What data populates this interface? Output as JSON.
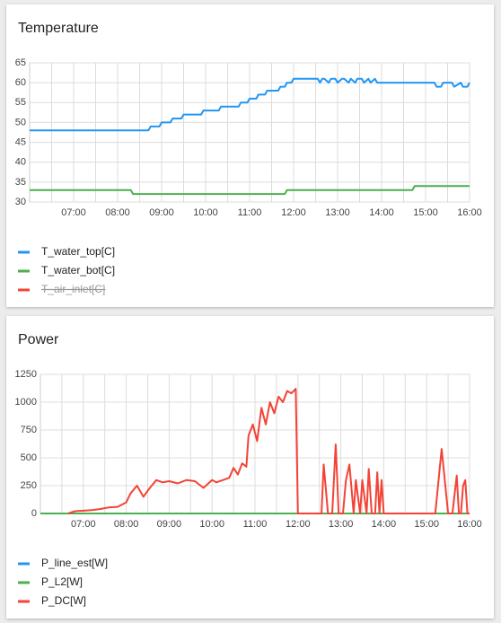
{
  "chart_data": [
    {
      "type": "line",
      "title": "Temperature",
      "xlim": [
        6,
        16
      ],
      "xticks": [
        {
          "value": 7,
          "label": "07:00"
        },
        {
          "value": 8,
          "label": "08:00"
        },
        {
          "value": 9,
          "label": "09:00"
        },
        {
          "value": 10,
          "label": "10:00"
        },
        {
          "value": 11,
          "label": "11:00"
        },
        {
          "value": 12,
          "label": "12:00"
        },
        {
          "value": 13,
          "label": "13:00"
        },
        {
          "value": 14,
          "label": "14:00"
        },
        {
          "value": 15,
          "label": "15:00"
        },
        {
          "value": 16,
          "label": "16:00"
        }
      ],
      "ylim": [
        30,
        65
      ],
      "yticks": [
        30,
        35,
        40,
        45,
        50,
        55,
        60,
        65
      ],
      "grid": true,
      "series": [
        {
          "name": "T_water_top[C]",
          "color": "#2196f3",
          "x": [
            6,
            8.7,
            8.75,
            8.95,
            9.0,
            9.2,
            9.25,
            9.45,
            9.5,
            9.9,
            9.95,
            10.3,
            10.35,
            10.75,
            10.8,
            10.95,
            11.0,
            11.15,
            11.2,
            11.35,
            11.4,
            11.65,
            11.7,
            11.8,
            11.85,
            11.95,
            12.0,
            12.55,
            12.6,
            12.65,
            12.7,
            12.8,
            12.85,
            12.95,
            13.0,
            13.1,
            13.15,
            13.25,
            13.3,
            13.4,
            13.45,
            13.55,
            13.6,
            13.7,
            13.75,
            13.85,
            13.9,
            15.2,
            15.25,
            15.35,
            15.4,
            15.6,
            15.65,
            15.8,
            15.85,
            15.95,
            16
          ],
          "values": [
            48,
            48,
            49,
            49,
            50,
            50,
            51,
            51,
            52,
            52,
            53,
            53,
            54,
            54,
            55,
            55,
            56,
            56,
            57,
            57,
            58,
            58,
            59,
            59,
            60,
            60,
            61,
            61,
            60,
            61,
            61,
            60,
            61,
            61,
            60,
            61,
            61,
            60,
            61,
            60,
            61,
            61,
            60,
            61,
            60,
            61,
            60,
            60,
            59,
            59,
            60,
            60,
            59,
            60,
            59,
            59,
            60
          ]
        },
        {
          "name": "T_water_bot[C]",
          "color": "#4caf50",
          "x": [
            6,
            8.3,
            8.35,
            11.8,
            11.85,
            14.7,
            14.75,
            16
          ],
          "values": [
            33,
            33,
            32,
            32,
            33,
            33,
            34,
            34
          ]
        },
        {
          "name": "T_air_inlet[C]",
          "color": "#f44336",
          "hidden": true
        }
      ]
    },
    {
      "type": "line",
      "title": "Power",
      "xlim": [
        6,
        16
      ],
      "xticks": [
        {
          "value": 7,
          "label": "07:00"
        },
        {
          "value": 8,
          "label": "08:00"
        },
        {
          "value": 9,
          "label": "09:00"
        },
        {
          "value": 10,
          "label": "10:00"
        },
        {
          "value": 11,
          "label": "11:00"
        },
        {
          "value": 12,
          "label": "12:00"
        },
        {
          "value": 13,
          "label": "13:00"
        },
        {
          "value": 14,
          "label": "14:00"
        },
        {
          "value": 15,
          "label": "15:00"
        },
        {
          "value": 16,
          "label": "16:00"
        }
      ],
      "ylim": [
        0,
        1250
      ],
      "yticks": [
        0,
        250,
        500,
        750,
        1000,
        1250
      ],
      "grid": true,
      "series": [
        {
          "name": "P_line_est[W]",
          "color": "#2196f3",
          "x": [
            6,
            16
          ],
          "values": [
            0,
            0
          ]
        },
        {
          "name": "P_L2[W]",
          "color": "#4caf50",
          "x": [
            6,
            16
          ],
          "values": [
            0,
            0
          ]
        },
        {
          "name": "P_DC[W]",
          "color": "#f44336",
          "x": [
            6.65,
            6.8,
            7.0,
            7.2,
            7.4,
            7.6,
            7.8,
            8.0,
            8.1,
            8.25,
            8.4,
            8.55,
            8.7,
            8.85,
            9.0,
            9.2,
            9.4,
            9.6,
            9.8,
            10.0,
            10.1,
            10.25,
            10.4,
            10.5,
            10.6,
            10.7,
            10.8,
            10.85,
            10.95,
            11.05,
            11.15,
            11.25,
            11.35,
            11.45,
            11.55,
            11.65,
            11.75,
            11.85,
            11.95,
            12.0,
            12.55,
            12.6,
            12.7,
            12.8,
            12.88,
            12.95,
            13.05,
            13.12,
            13.2,
            13.3,
            13.35,
            13.45,
            13.5,
            13.6,
            13.65,
            13.72,
            13.8,
            13.85,
            13.9,
            13.95,
            14.0,
            15.2,
            15.35,
            15.5,
            15.6,
            15.7,
            15.75,
            15.8,
            15.85,
            15.9,
            15.95,
            16.0
          ],
          "values": [
            0,
            20,
            25,
            30,
            40,
            55,
            60,
            100,
            180,
            250,
            150,
            230,
            300,
            280,
            290,
            270,
            300,
            290,
            230,
            300,
            280,
            300,
            320,
            410,
            350,
            450,
            420,
            700,
            800,
            650,
            950,
            800,
            1000,
            900,
            1050,
            1000,
            1100,
            1080,
            1120,
            0,
            0,
            440,
            0,
            0,
            620,
            0,
            0,
            300,
            440,
            0,
            300,
            0,
            300,
            0,
            400,
            0,
            0,
            370,
            0,
            300,
            0,
            0,
            580,
            0,
            0,
            340,
            0,
            0,
            250,
            300,
            0,
            0
          ]
        }
      ]
    }
  ]
}
